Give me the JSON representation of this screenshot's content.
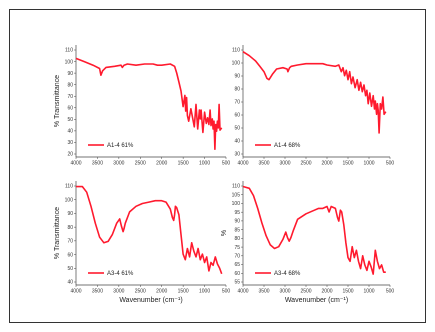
{
  "page": {
    "xlabel": "Wavenumber (cm⁻¹)",
    "ylabel": "% Transmittance",
    "ylabel_short": "%"
  },
  "chart_data": [
    {
      "type": "line",
      "series": [
        {
          "name": "A1-4 61%",
          "color": "#ff1a2e"
        }
      ],
      "x_ticks": [
        "4000",
        "3500",
        "3000",
        "2500",
        "2000",
        "1500",
        "1000",
        "500"
      ],
      "y_ticks": [
        "110",
        "100",
        "90",
        "80",
        "70",
        "60",
        "50",
        "40",
        "30",
        "20"
      ],
      "xlim": [
        4000,
        500
      ],
      "ylim": [
        15,
        115
      ],
      "x": [
        4000,
        3800,
        3600,
        3450,
        3420,
        3380,
        3300,
        3100,
        2950,
        2920,
        2880,
        2800,
        2600,
        2400,
        2300,
        2200,
        2100,
        2000,
        1800,
        1700,
        1650,
        1600,
        1550,
        1500,
        1460,
        1440,
        1420,
        1400,
        1370,
        1320,
        1280,
        1240,
        1200,
        1160,
        1120,
        1100,
        1080,
        1040,
        1000,
        960,
        930,
        900,
        870,
        850,
        820,
        800,
        780,
        760,
        740,
        720,
        700,
        680,
        660,
        640,
        600
      ],
      "y": [
        103,
        100,
        97,
        94,
        88,
        92,
        95,
        96,
        97,
        95,
        97,
        98,
        97,
        98,
        98,
        98,
        97,
        97,
        98,
        96,
        90,
        82,
        74,
        60,
        70,
        56,
        68,
        52,
        47,
        58,
        50,
        42,
        62,
        40,
        57,
        49,
        57,
        37,
        55,
        45,
        50,
        44,
        57,
        43,
        49,
        40,
        47,
        22,
        44,
        38,
        47,
        41,
        62,
        39,
        41
      ]
    },
    {
      "type": "line",
      "series": [
        {
          "name": "A1-4 68%",
          "color": "#ff1a2e"
        }
      ],
      "x_ticks": [
        "4000",
        "3500",
        "3000",
        "2500",
        "2000",
        "1500",
        "1000",
        "500"
      ],
      "y_ticks": [
        "110",
        "100",
        "90",
        "80",
        "70",
        "60",
        "50",
        "40",
        "30"
      ],
      "xlim": [
        4000,
        500
      ],
      "ylim": [
        30,
        114
      ],
      "x": [
        4000,
        3850,
        3700,
        3600,
        3500,
        3430,
        3380,
        3300,
        3200,
        3050,
        2950,
        2930,
        2890,
        2850,
        2700,
        2500,
        2300,
        2200,
        2100,
        2000,
        1800,
        1720,
        1660,
        1620,
        1580,
        1540,
        1500,
        1460,
        1420,
        1380,
        1330,
        1280,
        1240,
        1200,
        1160,
        1120,
        1080,
        1050,
        1020,
        980,
        940,
        900,
        870,
        850,
        820,
        800,
        780,
        760,
        730,
        700,
        670,
        640,
        600
      ],
      "y": [
        109,
        106,
        102,
        98,
        94,
        89,
        88,
        92,
        96,
        97,
        96,
        94,
        97,
        98,
        99,
        100,
        100,
        100,
        100,
        99,
        98,
        99,
        94,
        97,
        91,
        95,
        88,
        94,
        85,
        90,
        82,
        88,
        80,
        86,
        79,
        84,
        76,
        80,
        70,
        78,
        68,
        76,
        66,
        72,
        62,
        70,
        65,
        48,
        70,
        66,
        75,
        62,
        64
      ]
    },
    {
      "type": "line",
      "series": [
        {
          "name": "A3-4 61%",
          "color": "#ff1a2e"
        }
      ],
      "x_ticks": [
        "4000",
        "3500",
        "3000",
        "2500",
        "2000",
        "1500",
        "1000",
        "500"
      ],
      "y_ticks": [
        "110",
        "100",
        "90",
        "80",
        "70",
        "60",
        "50",
        "40"
      ],
      "xlim": [
        4000,
        500
      ],
      "ylim": [
        40,
        114
      ],
      "x": [
        4000,
        3850,
        3750,
        3650,
        3550,
        3450,
        3350,
        3250,
        3150,
        3050,
        2980,
        2940,
        2900,
        2880,
        2850,
        2750,
        2600,
        2450,
        2300,
        2150,
        2000,
        1900,
        1800,
        1750,
        1720,
        1700,
        1680,
        1650,
        1600,
        1550,
        1500,
        1450,
        1400,
        1350,
        1300,
        1250,
        1200,
        1150,
        1100,
        1050,
        1000,
        950,
        900,
        850,
        800,
        750,
        700,
        650,
        600
      ],
      "y": [
        110,
        110,
        106,
        96,
        84,
        74,
        70,
        71,
        76,
        84,
        87,
        82,
        78,
        80,
        84,
        92,
        96,
        98,
        99,
        100,
        100,
        99,
        94,
        88,
        86,
        90,
        96,
        95,
        90,
        76,
        62,
        58,
        66,
        60,
        70,
        64,
        60,
        66,
        58,
        62,
        56,
        60,
        50,
        56,
        54,
        60,
        55,
        52,
        48
      ]
    },
    {
      "type": "line",
      "series": [
        {
          "name": "A3-4 68%",
          "color": "#ff1a2e"
        }
      ],
      "x_ticks": [
        "4000",
        "3500",
        "3000",
        "2500",
        "2000",
        "1500",
        "1000",
        "500"
      ],
      "y_ticks": [
        "110",
        "105",
        "100",
        "95",
        "90",
        "85",
        "80",
        "75",
        "70",
        "65",
        "60",
        "55"
      ],
      "xlim": [
        4000,
        500
      ],
      "ylim": [
        55,
        112
      ],
      "x": [
        4000,
        3850,
        3750,
        3650,
        3550,
        3450,
        3350,
        3250,
        3150,
        3050,
        2980,
        2940,
        2900,
        2860,
        2800,
        2700,
        2500,
        2300,
        2200,
        2100,
        2000,
        1950,
        1900,
        1800,
        1750,
        1720,
        1700,
        1680,
        1650,
        1600,
        1550,
        1500,
        1450,
        1400,
        1350,
        1300,
        1250,
        1200,
        1150,
        1100,
        1050,
        1000,
        950,
        900,
        850,
        800,
        750,
        700,
        650,
        600
      ],
      "y": [
        109,
        108,
        104,
        97,
        89,
        82,
        77,
        75,
        76,
        80,
        84,
        81,
        79,
        81,
        85,
        91,
        94,
        96,
        97,
        97,
        98,
        95,
        98,
        97,
        92,
        90,
        93,
        96,
        95,
        88,
        78,
        70,
        68,
        76,
        70,
        74,
        68,
        64,
        71,
        66,
        63,
        68,
        65,
        61,
        74,
        68,
        64,
        66,
        62,
        62
      ]
    }
  ]
}
